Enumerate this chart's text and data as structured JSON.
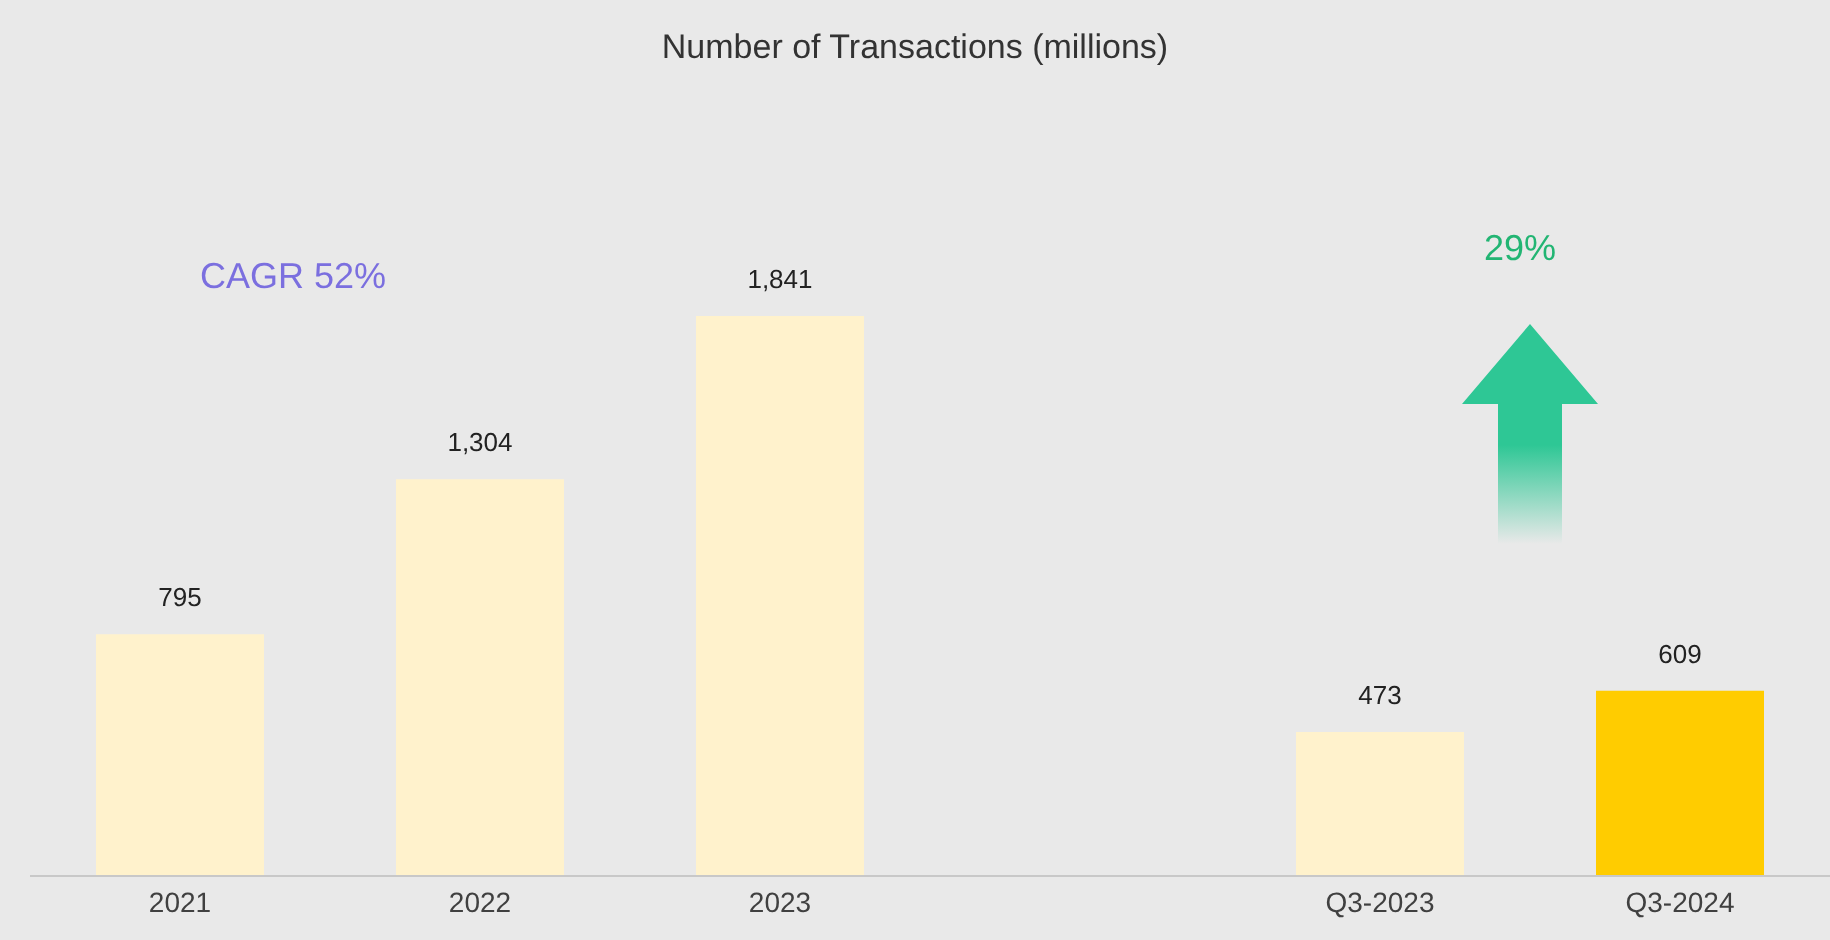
{
  "chart_data": {
    "type": "bar",
    "title": "Number of Transactions (millions)",
    "categories": [
      "2021",
      "2022",
      "2023",
      null,
      "Q3-2023",
      "Q3-2024"
    ],
    "values": [
      795,
      1304,
      1841,
      null,
      473,
      609
    ],
    "value_labels": [
      "795",
      "1,304",
      "1,841",
      null,
      "473",
      "609"
    ],
    "colors": [
      "#fff2cc",
      "#fff2cc",
      "#fff2cc",
      null,
      "#fff2cc",
      "#ffcc00"
    ],
    "annotations": [
      "CAGR 52%",
      "29%"
    ]
  }
}
